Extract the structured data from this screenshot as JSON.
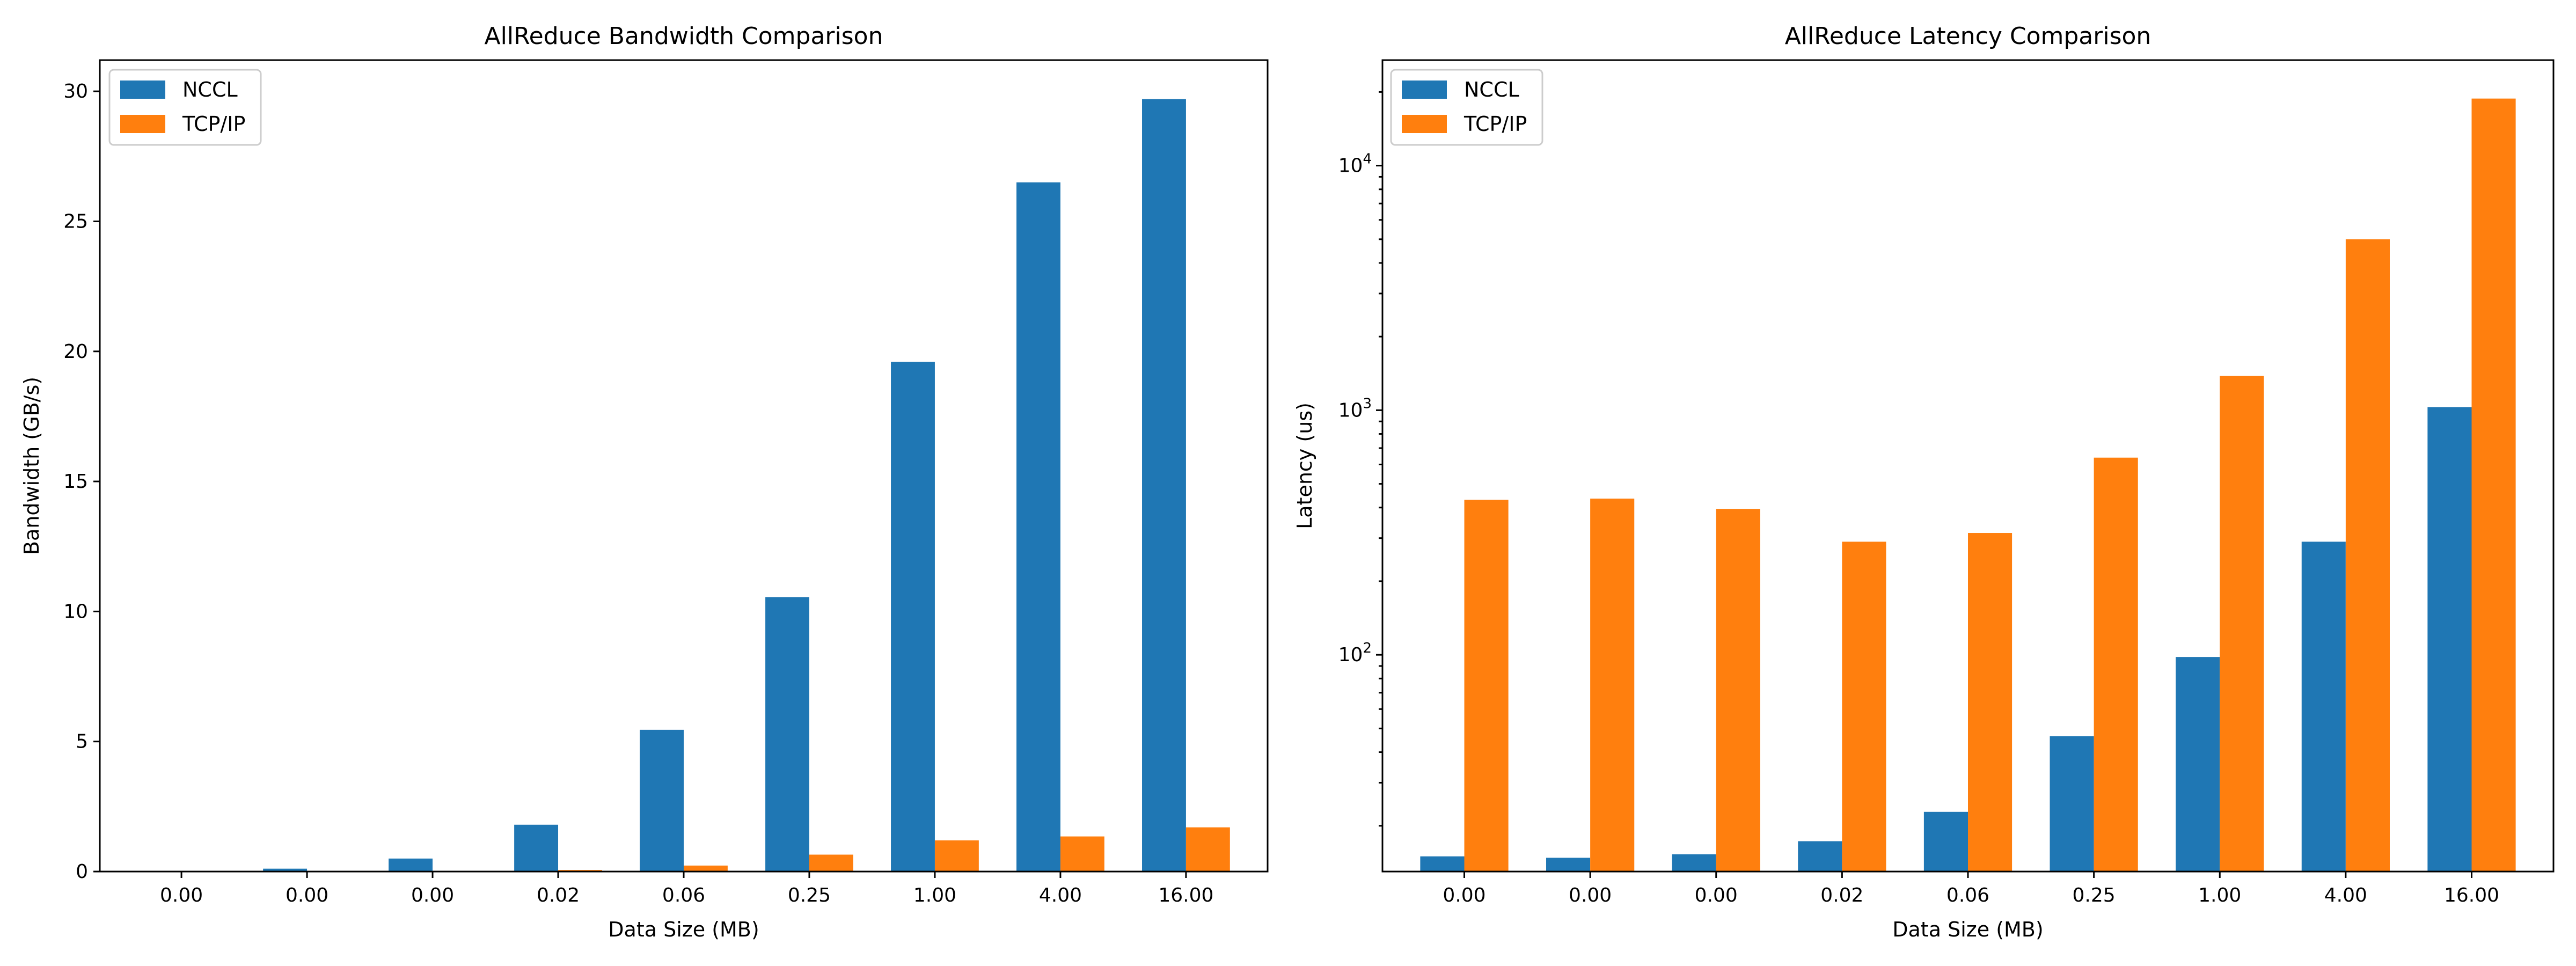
{
  "colors": {
    "nccl": "#1f77b4",
    "tcpip": "#ff7f0e"
  },
  "chart_data": [
    {
      "type": "bar",
      "title": "AllReduce Bandwidth Comparison",
      "xlabel": "Data Size (MB)",
      "ylabel": "Bandwidth (GB/s)",
      "yscale": "linear",
      "ylim": [
        0,
        31.2
      ],
      "yticks": [
        0,
        5,
        10,
        15,
        20,
        25,
        30
      ],
      "categories": [
        "0.00",
        "0.00",
        "0.00",
        "0.02",
        "0.06",
        "0.25",
        "1.00",
        "4.00",
        "16.00"
      ],
      "series": [
        {
          "name": "NCCL",
          "values": [
            0.02,
            0.11,
            0.5,
            1.8,
            5.45,
            10.55,
            19.6,
            26.5,
            29.7
          ]
        },
        {
          "name": "TCP/IP",
          "values": [
            0.0,
            0.0,
            0.01,
            0.06,
            0.23,
            0.65,
            1.2,
            1.35,
            1.7
          ]
        }
      ],
      "legend": "top-left",
      "grid": false
    },
    {
      "type": "bar",
      "title": "AllReduce Latency Comparison",
      "xlabel": "Data Size (MB)",
      "ylabel": "Latency (us)",
      "yscale": "log",
      "ylim": [
        13,
        27000
      ],
      "yticks": [
        100,
        1000,
        10000
      ],
      "ytick_labels": [
        [
          "10",
          "2"
        ],
        [
          "10",
          "3"
        ],
        [
          "10",
          "4"
        ]
      ],
      "categories": [
        "0.00",
        "0.00",
        "0.00",
        "0.02",
        "0.06",
        "0.25",
        "1.00",
        "4.00",
        "16.00"
      ],
      "series": [
        {
          "name": "NCCL",
          "values": [
            15,
            14.8,
            15.3,
            17.3,
            22.8,
            46.5,
            98,
            290,
            1030
          ]
        },
        {
          "name": "TCP/IP",
          "values": [
            430,
            435,
            395,
            290,
            315,
            640,
            1380,
            5000,
            18800
          ]
        }
      ],
      "legend": "top-left",
      "grid": false
    }
  ]
}
